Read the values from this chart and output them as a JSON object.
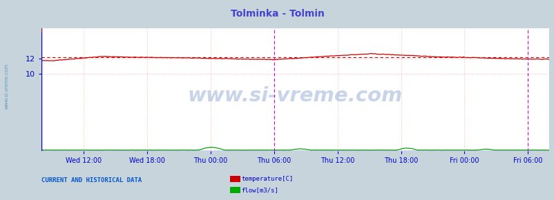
{
  "title": "Tolminka - Tolmin",
  "title_color": "#4444cc",
  "bg_color": "#c8d4dc",
  "plot_bg_color": "#ffffff",
  "watermark": "www.si-vreme.com",
  "watermark_color": "#2255aa",
  "watermark_alpha": 0.25,
  "ylim": [
    0,
    16
  ],
  "yticks": [
    10,
    12
  ],
  "x_tick_labels": [
    "Wed 12:00",
    "Wed 18:00",
    "Thu 00:00",
    "Thu 06:00",
    "Thu 12:00",
    "Thu 18:00",
    "Fri 00:00",
    "Fri 06:00"
  ],
  "x_tick_positions": [
    0.0833,
    0.2083,
    0.3333,
    0.4583,
    0.5833,
    0.7083,
    0.8333,
    0.9583
  ],
  "grid_color": "#ffaaaa",
  "temp_color": "#cc0000",
  "flow_color": "#00aa00",
  "temp_avg_value": 12.18,
  "bottom_label": "CURRENT AND HISTORICAL DATA",
  "bottom_label_color": "#0055cc",
  "legend_labels": [
    "temperature[C]",
    "flow[m3/s]"
  ],
  "legend_colors": [
    "#cc0000",
    "#00aa00"
  ],
  "tick_color": "#0000cc",
  "vline_color": "#cc00cc",
  "vline_pos": 0.4583,
  "right_vline_pos": 0.9583,
  "n_points": 576,
  "side_label": "www.si-vreme.com",
  "side_label_color": "#4488bb"
}
